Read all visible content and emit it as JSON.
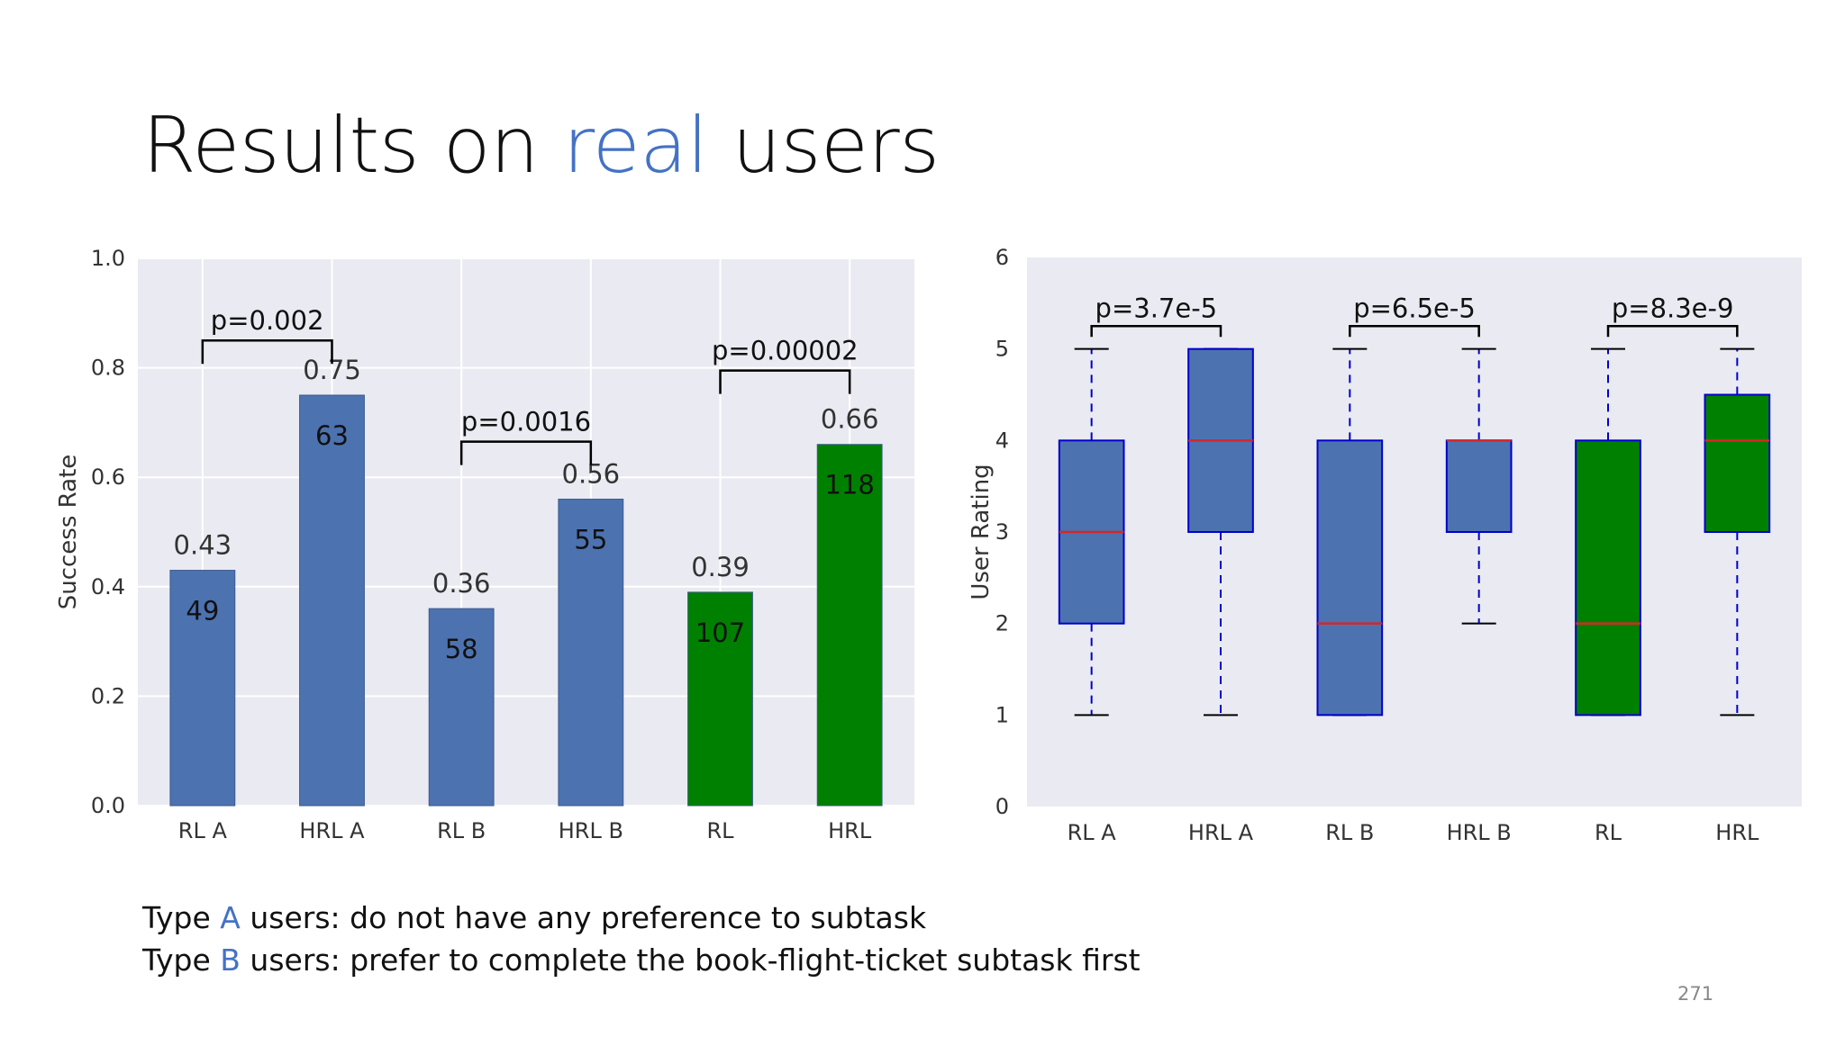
{
  "slide": {
    "title_pre": "Results on ",
    "title_hl": "real",
    "title_post": " users",
    "notes": [
      {
        "pre": "Type ",
        "hl": "A",
        "post": " users: do not have any preference to subtask"
      },
      {
        "pre": "Type ",
        "hl": "B",
        "post": " users: prefer to complete the book-flight-ticket subtask first"
      }
    ],
    "page_number": "271",
    "accent_color": "#4472c4"
  },
  "chart_data": [
    {
      "type": "bar",
      "ylabel": "Success Rate",
      "ylim": [
        0,
        1.0
      ],
      "yticks": [
        "0.0",
        "0.2",
        "0.4",
        "0.6",
        "0.8",
        "1.0"
      ],
      "categories": [
        "RL A",
        "HRL A",
        "RL B",
        "HRL B",
        "RL",
        "HRL"
      ],
      "values": [
        0.43,
        0.75,
        0.36,
        0.56,
        0.39,
        0.66
      ],
      "value_labels": [
        "0.43",
        "0.75",
        "0.36",
        "0.56",
        "0.39",
        "0.66"
      ],
      "counts": [
        "49",
        "63",
        "58",
        "55",
        "107",
        "118"
      ],
      "colors": [
        "#4c72b0",
        "#4c72b0",
        "#4c72b0",
        "#4c72b0",
        "#008000",
        "#008000"
      ],
      "significance": [
        {
          "from": 0,
          "to": 1,
          "label": "p=0.002",
          "level": 0.85
        },
        {
          "from": 2,
          "to": 3,
          "label": "p=0.0016",
          "level": 0.665
        },
        {
          "from": 4,
          "to": 5,
          "label": "p=0.00002",
          "level": 0.795
        }
      ],
      "grid": true,
      "background": "#eaeaf2"
    },
    {
      "type": "box",
      "ylabel": "User Rating",
      "ylim": [
        0,
        6
      ],
      "yticks": [
        "0",
        "1",
        "2",
        "3",
        "4",
        "5",
        "6"
      ],
      "categories": [
        "RL A",
        "HRL A",
        "RL B",
        "HRL B",
        "RL",
        "HRL"
      ],
      "boxes": [
        {
          "whisker_low": 1,
          "q1": 2,
          "median": 3,
          "q3": 4,
          "whisker_high": 5
        },
        {
          "whisker_low": 1,
          "q1": 3,
          "median": 4,
          "q3": 5,
          "whisker_high": 5
        },
        {
          "whisker_low": 1,
          "q1": 1,
          "median": 2,
          "q3": 4,
          "whisker_high": 5
        },
        {
          "whisker_low": 2,
          "q1": 3,
          "median": 4,
          "q3": 4,
          "whisker_high": 5
        },
        {
          "whisker_low": 1,
          "q1": 1,
          "median": 2,
          "q3": 4,
          "whisker_high": 5
        },
        {
          "whisker_low": 1,
          "q1": 3,
          "median": 4,
          "q3": 4.5,
          "whisker_high": 5
        }
      ],
      "colors": [
        "#4c72b0",
        "#4c72b0",
        "#4c72b0",
        "#4c72b0",
        "#008000",
        "#008000"
      ],
      "significance": [
        {
          "from": 0,
          "to": 1,
          "label": "p=3.7e-5",
          "level": 5.25
        },
        {
          "from": 2,
          "to": 3,
          "label": "p=6.5e-5",
          "level": 5.25
        },
        {
          "from": 4,
          "to": 5,
          "label": "p=8.3e-9",
          "level": 5.25
        }
      ],
      "grid": false,
      "background": "#eaeaf2"
    }
  ]
}
